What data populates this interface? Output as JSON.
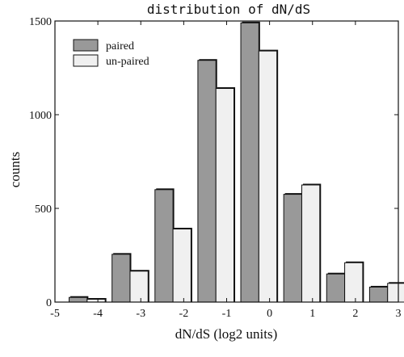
{
  "chart_data": {
    "type": "bar",
    "title": "distribution of dN/dS",
    "xlabel": "dN/dS (log2 units)",
    "ylabel": "counts",
    "xlim": [
      -5,
      3
    ],
    "ylim": [
      0,
      1500
    ],
    "xticks": [
      -5,
      -4,
      -3,
      -2,
      -1,
      0,
      1,
      2,
      3
    ],
    "yticks": [
      0,
      500,
      1000,
      1500
    ],
    "bin_centers": [
      -4.25,
      -3.25,
      -2.25,
      -1.25,
      -0.25,
      0.75,
      1.75,
      2.75
    ],
    "legend_position": "top-left",
    "series": [
      {
        "name": "paired",
        "color": "#999999",
        "values": [
          25,
          255,
          600,
          1290,
          1490,
          575,
          150,
          80
        ]
      },
      {
        "name": "un-paired",
        "color": "#f0f0f0",
        "values": [
          15,
          165,
          390,
          1140,
          1340,
          625,
          210,
          100
        ]
      }
    ]
  }
}
